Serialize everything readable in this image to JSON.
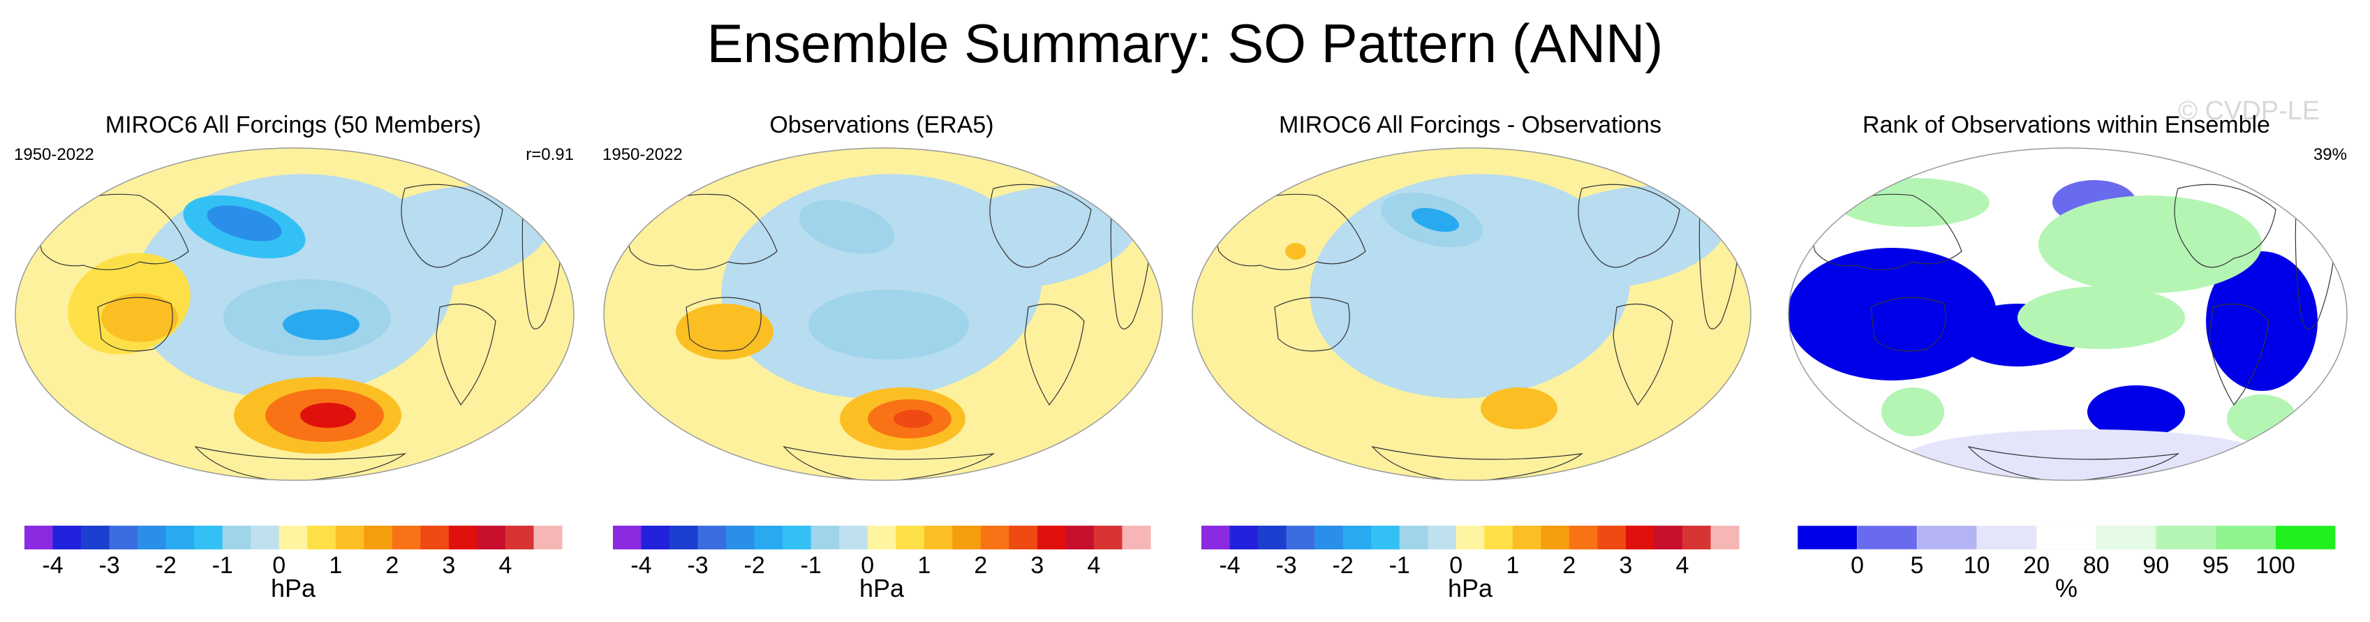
{
  "title": "Ensemble Summary: SO Pattern (ANN)",
  "watermark": "© CVDP-LE",
  "panels": [
    {
      "title": "MIROC6 All Forcings (50 Members)",
      "left_text": "1950-2022",
      "right_text": "r=0.91",
      "colorbar": "diverging"
    },
    {
      "title": "Observations (ERA5)",
      "left_text": "1950-2022",
      "right_text": "",
      "colorbar": "diverging"
    },
    {
      "title": "MIROC6 All Forcings - Observations",
      "left_text": "",
      "right_text": "",
      "colorbar": "diverging"
    },
    {
      "title": "Rank of Observations within Ensemble",
      "left_text": "",
      "right_text": "39%",
      "colorbar": "rank"
    }
  ],
  "chart_data": {
    "type": "heatmap",
    "projection": "Robinson (global maps, Pacific-centered)",
    "diverging_colorbar": {
      "unit_label": "hPa",
      "tick_labels": [
        "-4",
        "-3",
        "-2",
        "-1",
        "0",
        "1",
        "2",
        "3",
        "4"
      ],
      "levels": [
        -4.5,
        -4,
        -3.5,
        -3,
        -2.5,
        -2,
        -1.5,
        -1,
        -0.5,
        0,
        0.5,
        1,
        1.5,
        2,
        2.5,
        3,
        3.5,
        4,
        4.5
      ],
      "colors": [
        "#8a2be2",
        "#2222dd",
        "#1d3fcf",
        "#3a6ee0",
        "#2a8fe8",
        "#29aaf0",
        "#33c1f5",
        "#9fd4ea",
        "#bfe0ee",
        "#fff5a0",
        "#fde047",
        "#fbbf24",
        "#f59e0b",
        "#f97316",
        "#ef4a12",
        "#e0100c",
        "#c8102e",
        "#d93434",
        "#f7b6b6"
      ]
    },
    "rank_colorbar": {
      "unit_label": "%",
      "tick_labels": [
        "0",
        "5",
        "10",
        "20",
        "80",
        "90",
        "95",
        "100"
      ],
      "colors": [
        "#0000e8",
        "#6a6aef",
        "#b4b4f5",
        "#e4e4fb",
        "#ffffff",
        "#e4fae4",
        "#b4f5b4",
        "#8ef58e",
        "#1ef01e"
      ]
    },
    "map_colors": {
      "negative": "#b8dcf0",
      "positive": "#fdf19e",
      "land_outline": "#333333"
    }
  }
}
